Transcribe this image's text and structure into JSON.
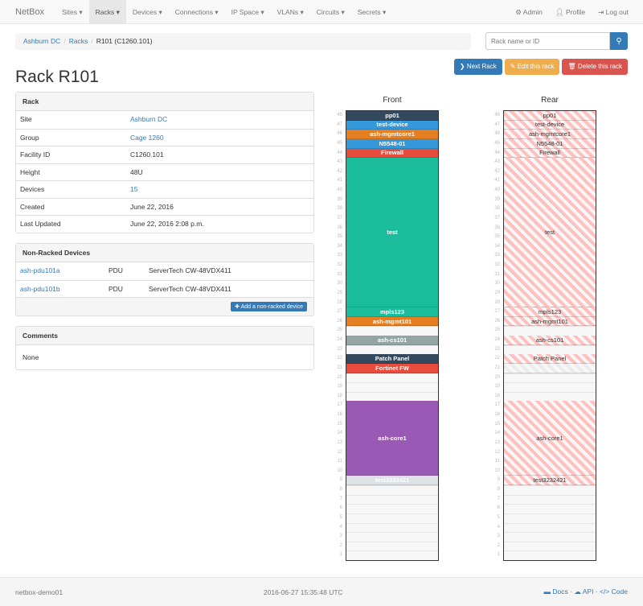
{
  "nav": {
    "brand": "NetBox",
    "items": [
      "Sites",
      "Racks",
      "Devices",
      "Connections",
      "IP Space",
      "VLANs",
      "Circuits",
      "Secrets"
    ],
    "active": "Racks",
    "admin": "Admin",
    "profile": "Profile",
    "logout": "Log out"
  },
  "breadcrumb": [
    "Ashburn DC",
    "Racks",
    "R101 (C1260.101)"
  ],
  "search": {
    "placeholder": "Rack name or ID"
  },
  "buttons": {
    "next": "Next Rack",
    "edit": "Edit this rack",
    "delete": "Delete this rack"
  },
  "title": "Rack R101",
  "rack_panel": {
    "heading": "Rack",
    "rows": [
      {
        "k": "Site",
        "v": "Ashburn DC",
        "link": true
      },
      {
        "k": "Group",
        "v": "Cage 1260",
        "link": true
      },
      {
        "k": "Facility ID",
        "v": "C1260.101"
      },
      {
        "k": "Height",
        "v": "48U"
      },
      {
        "k": "Devices",
        "v": "15",
        "link": true
      },
      {
        "k": "Created",
        "v": "June 22, 2016"
      },
      {
        "k": "Last Updated",
        "v": "June 22, 2016 2:08 p.m."
      }
    ]
  },
  "nonracked": {
    "heading": "Non-Racked Devices",
    "rows": [
      {
        "name": "ash-pdu101a",
        "role": "PDU",
        "type": "ServerTech CW-48VDX411"
      },
      {
        "name": "ash-pdu101b",
        "role": "PDU",
        "type": "ServerTech CW-48VDX411"
      }
    ],
    "add": "Add a non-racked device"
  },
  "comments": {
    "heading": "Comments",
    "text": "None"
  },
  "elevation": {
    "front_label": "Front",
    "rear_label": "Rear",
    "units": 48,
    "devices": [
      {
        "name": "pp01",
        "u": 48,
        "h": 1,
        "color": "#34495e",
        "rear": true
      },
      {
        "name": "test-device",
        "u": 47,
        "h": 1,
        "color": "#3498db",
        "rear": true
      },
      {
        "name": "ash-mgmtcore1",
        "u": 46,
        "h": 1,
        "color": "#e67e22",
        "rear": true
      },
      {
        "name": "N5548-01",
        "u": 45,
        "h": 1,
        "color": "#3498db",
        "rear": true
      },
      {
        "name": "Firewall",
        "u": 44,
        "h": 1,
        "color": "#e74c3c",
        "rear": true
      },
      {
        "name": "test",
        "u": 28,
        "h": 16,
        "color": "#1abc9c",
        "rear": true
      },
      {
        "name": "mpls123",
        "u": 27,
        "h": 1,
        "color": "#1abc9c",
        "rear": true
      },
      {
        "name": "ash-mgmt101",
        "u": 26,
        "h": 1,
        "color": "#e67e22",
        "rear": true
      },
      {
        "name": "ash-cs101",
        "u": 24,
        "h": 1,
        "color": "#95a5a6",
        "rear": true
      },
      {
        "name": "Patch Panel",
        "u": 22,
        "h": 1,
        "color": "#34495e",
        "rear": true
      },
      {
        "name": "Fortinet FW",
        "u": 21,
        "h": 1,
        "color": "#e74c3c",
        "rear": false
      },
      {
        "name": "ash-core1",
        "u": 10,
        "h": 8,
        "color": "#9b59b6",
        "rear": true
      },
      {
        "name": "test3232421",
        "u": 9,
        "h": 1,
        "color": "#dde2e6",
        "rear": true
      }
    ]
  },
  "footer": {
    "host": "netbox-demo01",
    "time": "2016-06-27 15:35:48 UTC",
    "docs": "Docs",
    "api": "API",
    "code": "Code"
  }
}
